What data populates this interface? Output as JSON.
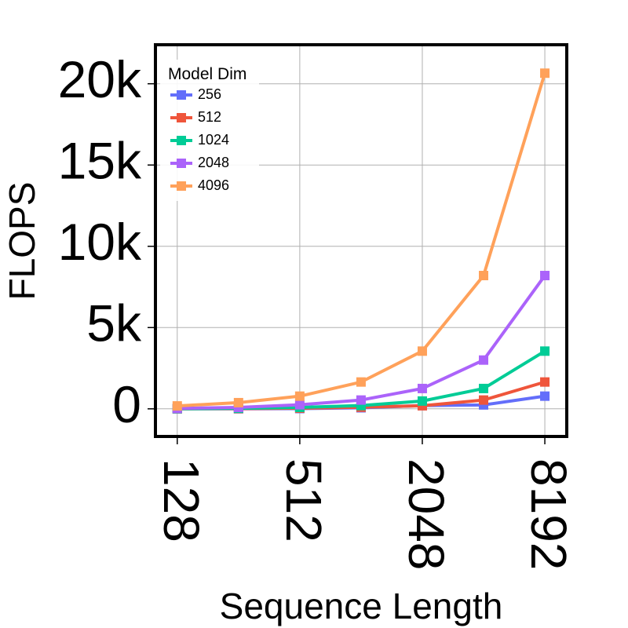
{
  "chart_data": {
    "type": "line",
    "title": "",
    "xlabel": "Sequence Length",
    "ylabel": "FLOPS",
    "x_scale": "log2",
    "x": [
      128,
      256,
      512,
      1024,
      2048,
      4096,
      8192
    ],
    "x_ticks": [
      128,
      512,
      2048,
      8192
    ],
    "x_tick_labels": [
      "128",
      "512",
      "2048",
      "8192"
    ],
    "y_ticks": [
      0,
      5000,
      10000,
      15000,
      20000
    ],
    "y_tick_labels": [
      "0",
      "5k",
      "10k",
      "15k",
      "20k"
    ],
    "xlim": [
      100,
      10500
    ],
    "ylim": [
      -1700,
      22400
    ],
    "grid": true,
    "legend": {
      "title": "Model Dim",
      "position": "top-left"
    },
    "series": [
      {
        "name": "256",
        "color": "#636efa",
        "marker": "square",
        "values": [
          1,
          4,
          16,
          64,
          200,
          240,
          780
        ]
      },
      {
        "name": "512",
        "color": "#ef553b",
        "marker": "square",
        "values": [
          3,
          12,
          40,
          100,
          190,
          540,
          1650
        ]
      },
      {
        "name": "1024",
        "color": "#00cc96",
        "marker": "square",
        "values": [
          8,
          32,
          90,
          200,
          480,
          1250,
          3550
        ]
      },
      {
        "name": "2048",
        "color": "#ab63fa",
        "marker": "square",
        "values": [
          25,
          90,
          250,
          540,
          1250,
          3000,
          8200
        ]
      },
      {
        "name": "4096",
        "color": "#ffa15a",
        "marker": "square",
        "values": [
          180,
          380,
          780,
          1650,
          3550,
          8200,
          20650
        ]
      }
    ]
  }
}
